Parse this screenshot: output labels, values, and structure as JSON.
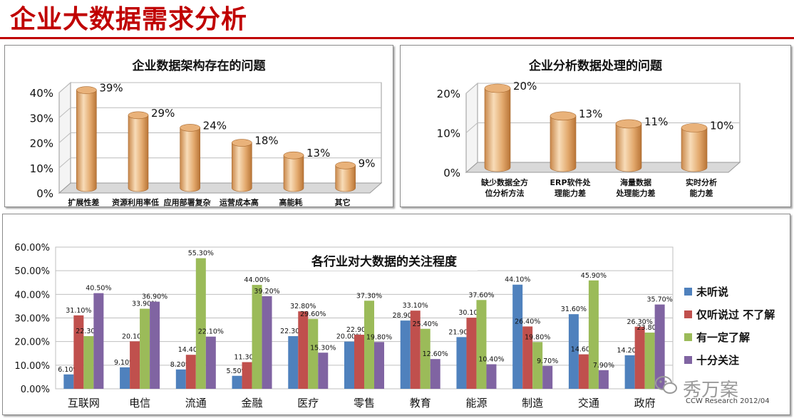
{
  "page": {
    "title": "企业大数据需求分析",
    "watermark": "秀万案",
    "source": "CCW Research  2012/04"
  },
  "colors": {
    "title_red": "#c00000",
    "cylinder_light": "#f6d8b4",
    "cylinder_dark": "#c8874a",
    "series": [
      "#4f81bd",
      "#c0504d",
      "#9bbb59",
      "#8064a2"
    ]
  },
  "chart_data": [
    {
      "type": "bar",
      "style": "3d-cylinder",
      "title": "企业数据架构存在的问题",
      "categories": [
        "扩展性差",
        "资源利用率低",
        "应用部署复杂",
        "运营成本高",
        "高能耗",
        "其它"
      ],
      "values": [
        39,
        29,
        24,
        18,
        13,
        9
      ],
      "value_labels": [
        "39%",
        "29%",
        "24%",
        "18%",
        "13%",
        "9%"
      ],
      "yticks": [
        "0%",
        "10%",
        "20%",
        "30%",
        "40%"
      ],
      "ylim": [
        0,
        40
      ],
      "unit": "%"
    },
    {
      "type": "bar",
      "style": "3d-cylinder",
      "title": "企业分析数据处理的问题",
      "categories": [
        [
          "缺少数据全方",
          "位分析方法"
        ],
        [
          "ERP软件处",
          "理能力差"
        ],
        [
          "海量数据",
          "处理能力差"
        ],
        [
          "实时分析",
          "能力差"
        ]
      ],
      "values": [
        20,
        13,
        11,
        10
      ],
      "value_labels": [
        "20%",
        "13%",
        "11%",
        "10%"
      ],
      "yticks": [
        "0%",
        "10%",
        "20%"
      ],
      "ylim": [
        0,
        20
      ],
      "unit": "%"
    },
    {
      "type": "bar",
      "title": "各行业对大数据的关注程度",
      "categories": [
        "互联网",
        "电信",
        "流通",
        "金融",
        "医疗",
        "零售",
        "教育",
        "能源",
        "制造",
        "交通",
        "政府"
      ],
      "yticks": [
        "0.00%",
        "10.00%",
        "20.00%",
        "30.00%",
        "40.00%",
        "50.00%",
        "60.00%"
      ],
      "ylim": [
        0,
        60
      ],
      "grid": true,
      "legend_position": "right",
      "series": [
        {
          "name": "未听说",
          "values": [
            6.1,
            9.1,
            8.2,
            5.5,
            22.3,
            20.0,
            28.9,
            21.9,
            44.1,
            31.6,
            14.2
          ]
        },
        {
          "name": "仅听说过 不了解",
          "values": [
            31.1,
            20.1,
            14.4,
            11.3,
            32.8,
            22.9,
            33.1,
            30.1,
            26.4,
            14.6,
            26.3
          ]
        },
        {
          "name": "有一定了解",
          "values": [
            22.3,
            33.9,
            55.3,
            44.0,
            29.6,
            37.3,
            25.4,
            37.6,
            19.8,
            45.9,
            23.8
          ]
        },
        {
          "name": "十分关注",
          "values": [
            40.5,
            36.9,
            22.1,
            39.2,
            15.3,
            19.8,
            12.6,
            10.4,
            9.7,
            7.9,
            35.7
          ]
        }
      ]
    }
  ]
}
